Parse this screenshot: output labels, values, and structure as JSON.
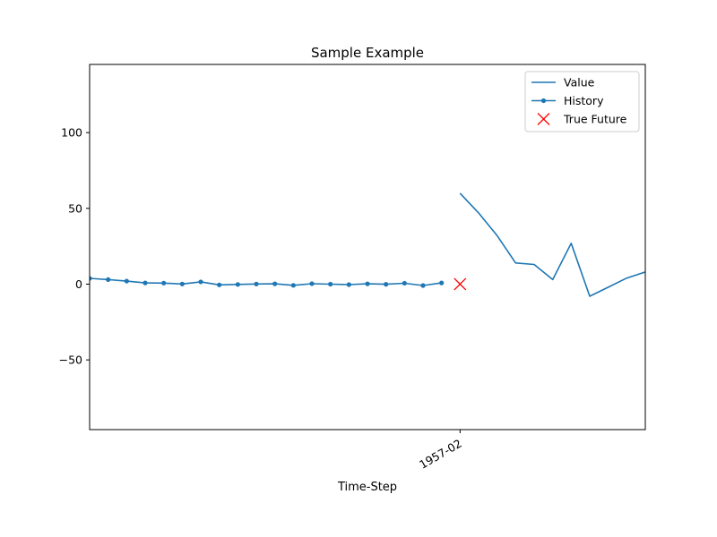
{
  "chart_data": {
    "type": "line",
    "title": "Sample Example",
    "xlabel": "Time-Step",
    "ylabel": "",
    "ylim": [
      -96,
      145
    ],
    "xlim": [
      -20,
      10
    ],
    "grid": false,
    "legend_position": "top-right",
    "yticks": [
      {
        "value": 100,
        "label": "100"
      },
      {
        "value": 50,
        "label": "50"
      },
      {
        "value": 0,
        "label": "0"
      },
      {
        "value": -50,
        "label": "−50"
      }
    ],
    "xticks": [
      {
        "value": 0,
        "label": "1957-02"
      }
    ],
    "series": [
      {
        "name": "Value",
        "style": "line",
        "color": "#1f77b4",
        "x": [
          0,
          1,
          2,
          3,
          4,
          5,
          6,
          7,
          8,
          9,
          10
        ],
        "y": [
          60,
          47,
          32,
          14,
          13,
          3,
          27,
          -8,
          -2,
          4,
          8
        ]
      },
      {
        "name": "History",
        "style": "line-dot",
        "color": "#1f77b4",
        "x": [
          -20,
          -19,
          -18,
          -17,
          -16,
          -15,
          -14,
          -13,
          -12,
          -11,
          -10,
          -9,
          -8,
          -7,
          -6,
          -5,
          -4,
          -3,
          -2,
          -1
        ],
        "y": [
          3.8,
          3.0,
          2.0,
          0.8,
          0.7,
          0.1,
          1.5,
          -0.5,
          -0.2,
          0.1,
          0.2,
          -0.8,
          0.3,
          0.0,
          -0.3,
          0.2,
          -0.1,
          0.6,
          -0.9,
          0.8
        ]
      },
      {
        "name": "True Future",
        "style": "x-marker",
        "color": "#ff0000",
        "x": [
          0
        ],
        "y": [
          0
        ]
      }
    ]
  }
}
